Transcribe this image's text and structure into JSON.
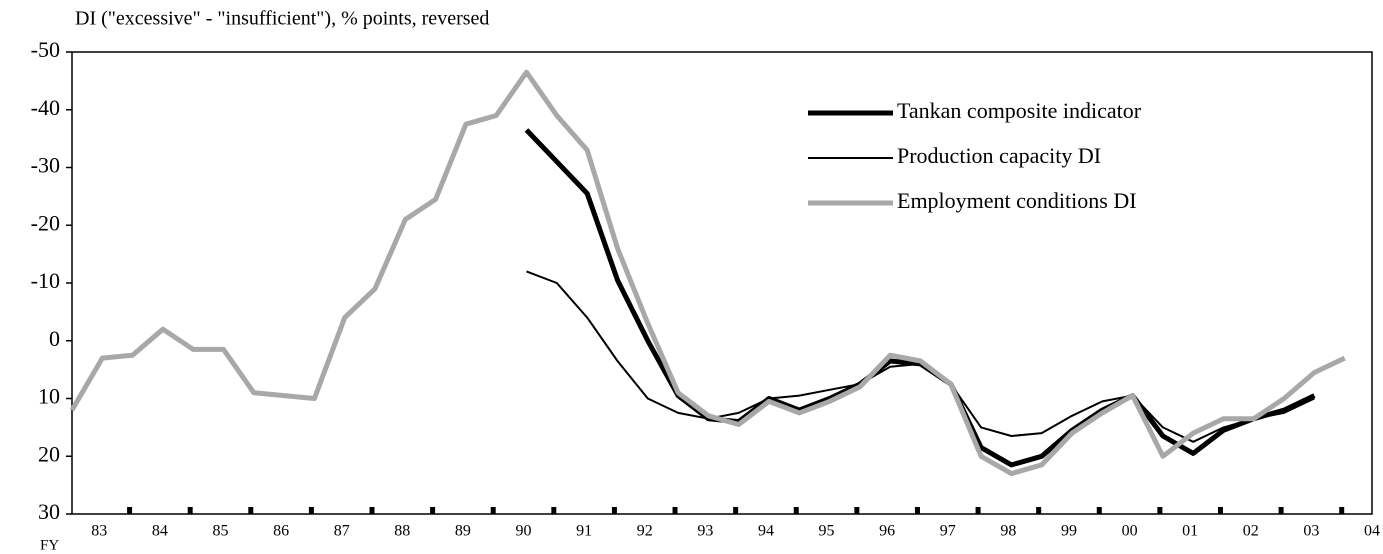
{
  "chart_data": {
    "type": "line",
    "y_label": "DI (\"excessive\" - \"insufficient\"), % points, reversed",
    "x_label": "FY",
    "x": [
      1983,
      1983.5,
      1984,
      1984.5,
      1985,
      1985.5,
      1986,
      1986.5,
      1987,
      1987.5,
      1988,
      1988.5,
      1989,
      1989.5,
      1990,
      1990.5,
      1991,
      1991.5,
      1992,
      1992.5,
      1993,
      1993.5,
      1994,
      1994.5,
      1995,
      1995.5,
      1996,
      1996.5,
      1997,
      1997.5,
      1998,
      1998.5,
      1999,
      1999.5,
      2000,
      2000.5,
      2001,
      2001.5,
      2002,
      2002.5,
      2003,
      2003.5,
      2004
    ],
    "series": [
      {
        "name": "Tankan composite indicator",
        "color": "#000000",
        "width": 5,
        "values": [
          null,
          null,
          null,
          null,
          null,
          null,
          null,
          null,
          null,
          null,
          null,
          null,
          null,
          null,
          null,
          -36.5,
          -31,
          -25.5,
          -10.5,
          0,
          9.5,
          13.5,
          14,
          10,
          12,
          10,
          7.5,
          3.5,
          4,
          7.5,
          18.5,
          21.5,
          20,
          15.5,
          12,
          9.5,
          16.5,
          19.5,
          15.5,
          13.5,
          12,
          9.5,
          null
        ]
      },
      {
        "name": "Production capacity DI",
        "color": "#000000",
        "width": 2,
        "values": [
          null,
          null,
          null,
          null,
          null,
          null,
          null,
          null,
          null,
          null,
          null,
          null,
          null,
          null,
          null,
          -12,
          -10,
          -4,
          3.5,
          10,
          12.5,
          13.5,
          12.5,
          10,
          9.5,
          8.5,
          7.5,
          4.5,
          4,
          7.5,
          15,
          16.5,
          16,
          13,
          10.5,
          9.5,
          15,
          17.5,
          15,
          13.5,
          12.5,
          10,
          null
        ]
      },
      {
        "name": "Employment conditions DI",
        "color": "#a8a8a8",
        "width": 5,
        "values": [
          12,
          3,
          2.5,
          -2,
          1.5,
          1.5,
          9,
          9.5,
          10,
          -4,
          -9,
          -21,
          -24.5,
          -37.5,
          -39,
          -46.5,
          -39,
          -33,
          -16,
          -3,
          9,
          13,
          14.5,
          10.5,
          12.5,
          10.5,
          8,
          2.5,
          3.5,
          7.5,
          20,
          23,
          21.5,
          16,
          12.5,
          9.5,
          20,
          16,
          13.5,
          13.5,
          10,
          5.5,
          3
        ]
      }
    ],
    "ylim": [
      -50,
      30
    ],
    "y_reversed": true,
    "yticks": [
      -50,
      -40,
      -30,
      -20,
      -10,
      0,
      10,
      20,
      30
    ],
    "xlim": [
      1983,
      2004.45
    ],
    "xticks": [
      {
        "value": 1983.45,
        "label": "83"
      },
      {
        "value": 1984.45,
        "label": "84"
      },
      {
        "value": 1985.45,
        "label": "85"
      },
      {
        "value": 1986.45,
        "label": "86"
      },
      {
        "value": 1987.45,
        "label": "87"
      },
      {
        "value": 1988.45,
        "label": "88"
      },
      {
        "value": 1989.45,
        "label": "89"
      },
      {
        "value": 1990.45,
        "label": "90"
      },
      {
        "value": 1991.45,
        "label": "91"
      },
      {
        "value": 1992.45,
        "label": "92"
      },
      {
        "value": 1993.45,
        "label": "93"
      },
      {
        "value": 1994.45,
        "label": "94"
      },
      {
        "value": 1995.45,
        "label": "95"
      },
      {
        "value": 1996.45,
        "label": "96"
      },
      {
        "value": 1997.45,
        "label": "97"
      },
      {
        "value": 1998.45,
        "label": "98"
      },
      {
        "value": 1999.45,
        "label": "99"
      },
      {
        "value": 2000.45,
        "label": "00"
      },
      {
        "value": 2001.45,
        "label": "01"
      },
      {
        "value": 2002.45,
        "label": "02"
      },
      {
        "value": 2003.45,
        "label": "03"
      },
      {
        "value": 2004.45,
        "label": "04"
      }
    ],
    "legend": "upper-right",
    "grid": false
  }
}
